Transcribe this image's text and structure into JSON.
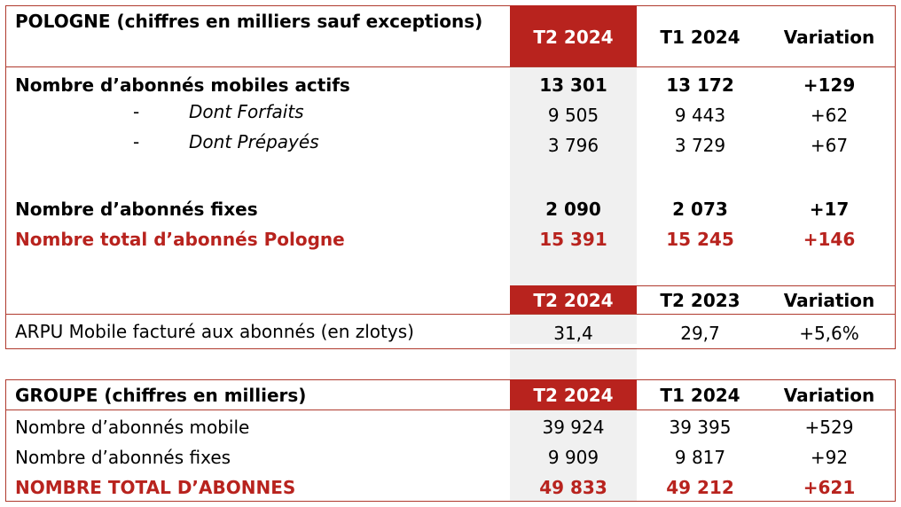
{
  "pologne": {
    "title": "POLOGNE (chiffres en milliers sauf exceptions)",
    "headers": [
      "T2 2024",
      "T1 2024",
      "Variation"
    ],
    "rows": [
      {
        "label": "Nombre d’abonnés mobiles actifs",
        "values": [
          "13 301",
          "13 172",
          "+129"
        ]
      },
      {
        "bullet": "-",
        "label": "Dont Forfaits",
        "values": [
          "9 505",
          "9 443",
          "+62"
        ]
      },
      {
        "bullet": "-",
        "label": "Dont Prépayés",
        "values": [
          "3 796",
          "3 729",
          "+67"
        ]
      },
      {
        "label": "Nombre d’abonnés fixes",
        "values": [
          "2 090",
          "2 073",
          "+17"
        ]
      },
      {
        "label": "Nombre total d’abonnés Pologne",
        "values": [
          "15 391",
          "15 245",
          "+146"
        ]
      }
    ],
    "arpu_headers": [
      "T2 2024",
      "T2 2023",
      "Variation"
    ],
    "arpu_row": {
      "label": "ARPU Mobile facturé aux abonnés (en zlotys)",
      "values": [
        "31,4",
        "29,7",
        "+5,6%"
      ]
    }
  },
  "groupe": {
    "title": "GROUPE (chiffres en milliers)",
    "headers": [
      "T2 2024",
      "T1 2024",
      "Variation"
    ],
    "rows": [
      {
        "label": "Nombre d’abonnés mobile",
        "values": [
          "39 924",
          "39 395",
          "+529"
        ]
      },
      {
        "label": "Nombre d’abonnés fixes",
        "values": [
          "9 909",
          "9 817",
          "+92"
        ]
      },
      {
        "label": "NOMBRE TOTAL D’ABONNES",
        "values": [
          "49 833",
          "49 212",
          "+621"
        ]
      }
    ]
  },
  "colors": {
    "accent": "#b8231e",
    "border": "#b03a2e",
    "shade": "#f0f0f0"
  }
}
